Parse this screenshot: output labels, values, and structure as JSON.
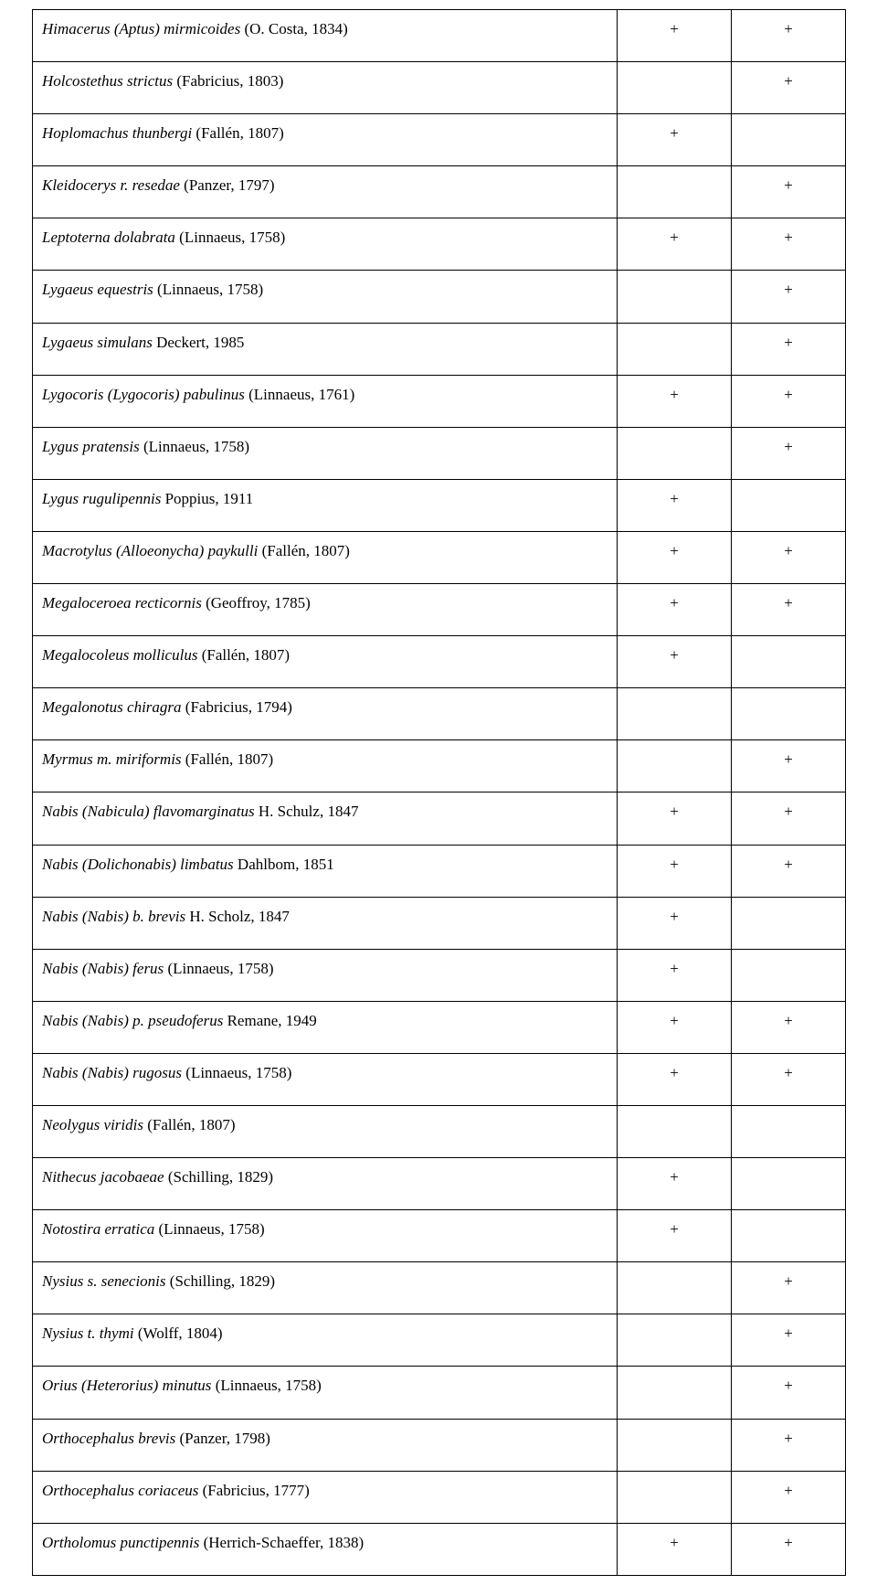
{
  "table": {
    "rows": [
      {
        "name_italic": "Himacerus (Aptus) mirmicoides",
        "name_rest": " (O. Costa, 1834)",
        "col1": "+",
        "col2": "+"
      },
      {
        "name_italic": "Holcostethus strictus",
        "name_rest": " (Fabricius, 1803)",
        "col1": "",
        "col2": "+"
      },
      {
        "name_italic": "Hoplomachus thunbergi",
        "name_rest": " (Fallén, 1807)",
        "col1": "+",
        "col2": ""
      },
      {
        "name_italic": "Kleidocerys r. resedae",
        "name_rest": " (Panzer, 1797)",
        "col1": "",
        "col2": "+"
      },
      {
        "name_italic": "Leptoterna dolabrata",
        "name_rest": " (Linnaeus, 1758)",
        "col1": "+",
        "col2": "+"
      },
      {
        "name_italic": "Lygaeus equestris",
        "name_rest": " (Linnaeus, 1758)",
        "col1": "",
        "col2": "+"
      },
      {
        "name_italic": "Lygaeus simulans",
        "name_rest": " Deckert, 1985",
        "col1": "",
        "col2": "+"
      },
      {
        "name_italic": "Lygocoris (Lygocoris) pabulinus",
        "name_rest": " (Linnaeus, 1761)",
        "col1": "+",
        "col2": "+"
      },
      {
        "name_italic": "Lygus pratensis",
        "name_rest": " (Linnaeus, 1758)",
        "col1": "",
        "col2": "+"
      },
      {
        "name_italic": "Lygus rugulipennis",
        "name_rest": " Poppius, 1911",
        "col1": "+",
        "col2": ""
      },
      {
        "name_italic": "Macrotylus (Alloeonycha) paykulli",
        "name_rest": " (Fallén, 1807)",
        "col1": "+",
        "col2": "+"
      },
      {
        "name_italic": "Megaloceroea recticornis",
        "name_rest": " (Geoffroy, 1785)",
        "col1": "+",
        "col2": "+"
      },
      {
        "name_italic": "Megalocoleus molliculus",
        "name_rest": " (Fallén, 1807)",
        "col1": "+",
        "col2": ""
      },
      {
        "name_italic": "Megalonotus chiragra",
        "name_rest": " (Fabricius, 1794)",
        "col1": "",
        "col2": ""
      },
      {
        "name_italic": "Myrmus m. miriformis",
        "name_rest": " (Fallén, 1807)",
        "col1": "",
        "col2": "+"
      },
      {
        "name_italic": "Nabis (Nabicula) flavomarginatus",
        "name_rest": " H. Schulz, 1847",
        "col1": "+",
        "col2": "+"
      },
      {
        "name_italic": "Nabis (Dolichonabis) limbatus",
        "name_rest": " Dahlbom, 1851",
        "col1": "+",
        "col2": "+"
      },
      {
        "name_italic": "Nabis (Nabis) b. brevis",
        "name_rest": " H. Scholz, 1847",
        "col1": "+",
        "col2": ""
      },
      {
        "name_italic": "Nabis (Nabis) ferus",
        "name_rest": " (Linnaeus, 1758)",
        "col1": "+",
        "col2": ""
      },
      {
        "name_italic": "Nabis (Nabis) p. pseudoferus",
        "name_rest": " Remane, 1949",
        "col1": "+",
        "col2": "+"
      },
      {
        "name_italic": "Nabis (Nabis) rugosus",
        "name_rest": " (Linnaeus, 1758)",
        "col1": "+",
        "col2": "+"
      },
      {
        "name_italic": "Neolygus viridis",
        "name_rest": " (Fallén, 1807)",
        "col1": "",
        "col2": ""
      },
      {
        "name_italic": "Nithecus jacobaeae",
        "name_rest": " (Schilling, 1829)",
        "col1": "+",
        "col2": ""
      },
      {
        "name_italic": "Notostira erratica",
        "name_rest": " (Linnaeus, 1758)",
        "col1": "+",
        "col2": ""
      },
      {
        "name_italic": "Nysius s. senecionis",
        "name_rest": " (Schilling, 1829)",
        "col1": "",
        "col2": "+"
      },
      {
        "name_italic": "Nysius t. thymi",
        "name_rest": " (Wolff, 1804)",
        "col1": "",
        "col2": "+"
      },
      {
        "name_italic": "Orius (Heterorius) minutus",
        "name_rest": " (Linnaeus, 1758)",
        "col1": "",
        "col2": "+"
      },
      {
        "name_italic": "Orthocephalus brevis",
        "name_rest": " (Panzer, 1798)",
        "col1": "",
        "col2": "+"
      },
      {
        "name_italic": "Orthocephalus coriaceus",
        "name_rest": " (Fabricius, 1777)",
        "col1": "",
        "col2": "+"
      },
      {
        "name_italic": "Ortholomus punctipennis",
        "name_rest": " (Herrich-Schaeffer, 1838)",
        "col1": "+",
        "col2": "+"
      }
    ]
  }
}
